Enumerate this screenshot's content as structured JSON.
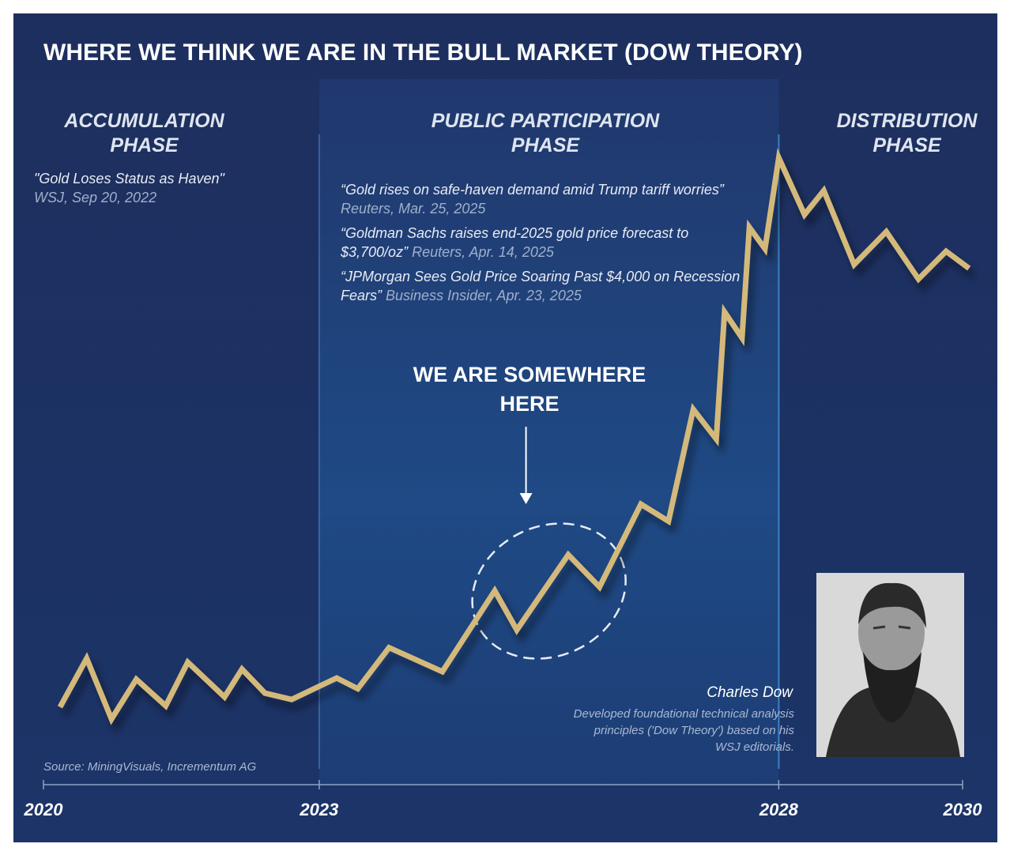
{
  "chart_data": {
    "type": "line",
    "title": "WHERE WE THINK WE ARE IN THE BULL MARKET (DOW THEORY)",
    "phases": [
      "ACCUMULATION PHASE",
      "PUBLIC PARTICIPATION PHASE",
      "DISTRIBUTION PHASE"
    ],
    "headlines": [
      {
        "quote": "\"Gold Loses Status as Haven\"",
        "source": "WSJ, Sep 20, 2022"
      },
      {
        "quote": "“Gold rises on safe-haven demand amid Trump tariff worries”",
        "source": "Reuters, Mar. 25, 2025"
      },
      {
        "quote": "“Goldman Sachs raises end-2025 gold price forecast to $3,700/oz”",
        "source": "Reuters, Apr. 14, 2025"
      },
      {
        "quote": "“JPMorgan Sees Gold Price Soaring Past $4,000 on Recession Fears”",
        "source": "Business Insider, Apr. 23, 2025"
      }
    ],
    "callout": "WE ARE SOMEWHERE HERE",
    "portrait": {
      "name": "Charles Dow",
      "caption": "Developed foundational technical analysis principles ('Dow Theory') based on his WSJ editorials."
    },
    "source": "Source: MiningVisuals, Incrementum AG",
    "color": "#d4b97a",
    "x": [
      2020.18,
      2020.47,
      2020.74,
      2021.01,
      2021.33,
      2021.57,
      2021.97,
      2022.16,
      2022.41,
      2022.7,
      2023.19,
      2023.42,
      2023.76,
      2024.34,
      2024.91,
      2025.15,
      2025.71,
      2026.05,
      2026.5,
      2026.8,
      2027.07,
      2027.32,
      2027.41,
      2027.6,
      2027.68,
      2027.85,
      2028.0,
      2028.28,
      2028.49,
      2028.82,
      2029.17,
      2029.52,
      2029.82,
      2030.07
    ],
    "values": [
      6.9,
      14.6,
      5,
      11.3,
      7.1,
      14,
      8.5,
      12.9,
      9.1,
      8.1,
      11.5,
      9.8,
      16.3,
      12.5,
      25.3,
      19.1,
      31,
      25.9,
      39,
      36.3,
      54,
      49.3,
      69.4,
      65.3,
      82.8,
      79.4,
      93.8,
      84.8,
      88.6,
      76.9,
      82.1,
      74.6,
      79,
      76.3
    ],
    "xlim": [
      2020,
      2030.1
    ],
    "ylim": [
      0,
      100
    ],
    "xticks": [
      2020,
      2023,
      2028,
      2030
    ]
  }
}
